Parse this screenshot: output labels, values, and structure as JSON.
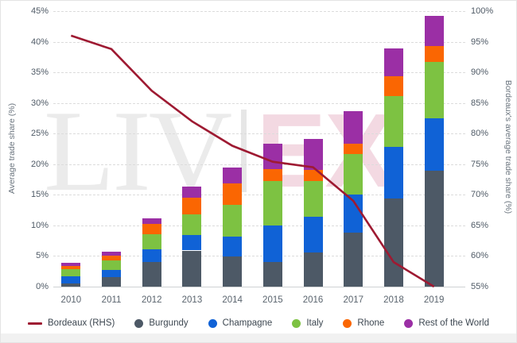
{
  "watermark": {
    "left": "LIV",
    "right": "EX"
  },
  "chart_data": {
    "type": "bar",
    "subtype": "stacked-bars-with-line",
    "categories": [
      "2010",
      "2011",
      "2012",
      "2013",
      "2014",
      "2015",
      "2016",
      "2017",
      "2018",
      "2019"
    ],
    "series": [
      {
        "name": "Burgundy",
        "color": "#4d5966",
        "values": [
          0.5,
          1.6,
          4.0,
          5.9,
          4.9,
          4.0,
          5.6,
          8.8,
          14.4,
          18.9
        ]
      },
      {
        "name": "Champagne",
        "color": "#1062d6",
        "values": [
          1.2,
          1.1,
          2.1,
          2.5,
          3.3,
          6.0,
          5.8,
          6.2,
          8.4,
          8.6
        ]
      },
      {
        "name": "Italy",
        "color": "#7dc242",
        "values": [
          1.1,
          1.6,
          2.5,
          3.4,
          5.1,
          7.2,
          5.9,
          6.7,
          8.3,
          9.2
        ]
      },
      {
        "name": "Rhone",
        "color": "#fa6602",
        "values": [
          0.6,
          0.8,
          1.7,
          2.7,
          3.6,
          2.0,
          1.7,
          1.7,
          3.3,
          2.6
        ]
      },
      {
        "name": "Rest of the World",
        "color": "#9b2fa5",
        "values": [
          0.5,
          0.6,
          0.9,
          1.8,
          2.6,
          4.2,
          5.1,
          5.2,
          4.5,
          4.9
        ]
      }
    ],
    "line_series": {
      "name": "Bordeaux (RHS)",
      "color": "#9e1a32",
      "axis": "right",
      "values": [
        96,
        93.8,
        87,
        82,
        78,
        75.4,
        74.5,
        69,
        59,
        55
      ]
    },
    "left_axis": {
      "label": "Average trade share (%)",
      "min": 0,
      "max": 45,
      "step": 5,
      "ticks": [
        "0%",
        "5%",
        "10%",
        "15%",
        "20%",
        "25%",
        "30%",
        "35%",
        "40%",
        "45%"
      ]
    },
    "right_axis": {
      "label": "Bordeaux's average trade share (%)",
      "min": 55,
      "max": 100,
      "step": 5,
      "ticks": [
        "55%",
        "60%",
        "65%",
        "70%",
        "75%",
        "80%",
        "85%",
        "90%",
        "95%",
        "100%"
      ]
    },
    "grid": "horizontal-dashed",
    "legend_position": "bottom"
  },
  "legend": {
    "items": [
      {
        "label": "Bordeaux (RHS)",
        "marker": "line",
        "color": "#9e1a32"
      },
      {
        "label": "Burgundy",
        "marker": "circle",
        "color": "#4d5966"
      },
      {
        "label": "Champagne",
        "marker": "circle",
        "color": "#1062d6"
      },
      {
        "label": "Italy",
        "marker": "circle",
        "color": "#7dc242"
      },
      {
        "label": "Rhone",
        "marker": "circle",
        "color": "#fa6602"
      },
      {
        "label": "Rest of the World",
        "marker": "circle",
        "color": "#9b2fa5"
      }
    ]
  }
}
